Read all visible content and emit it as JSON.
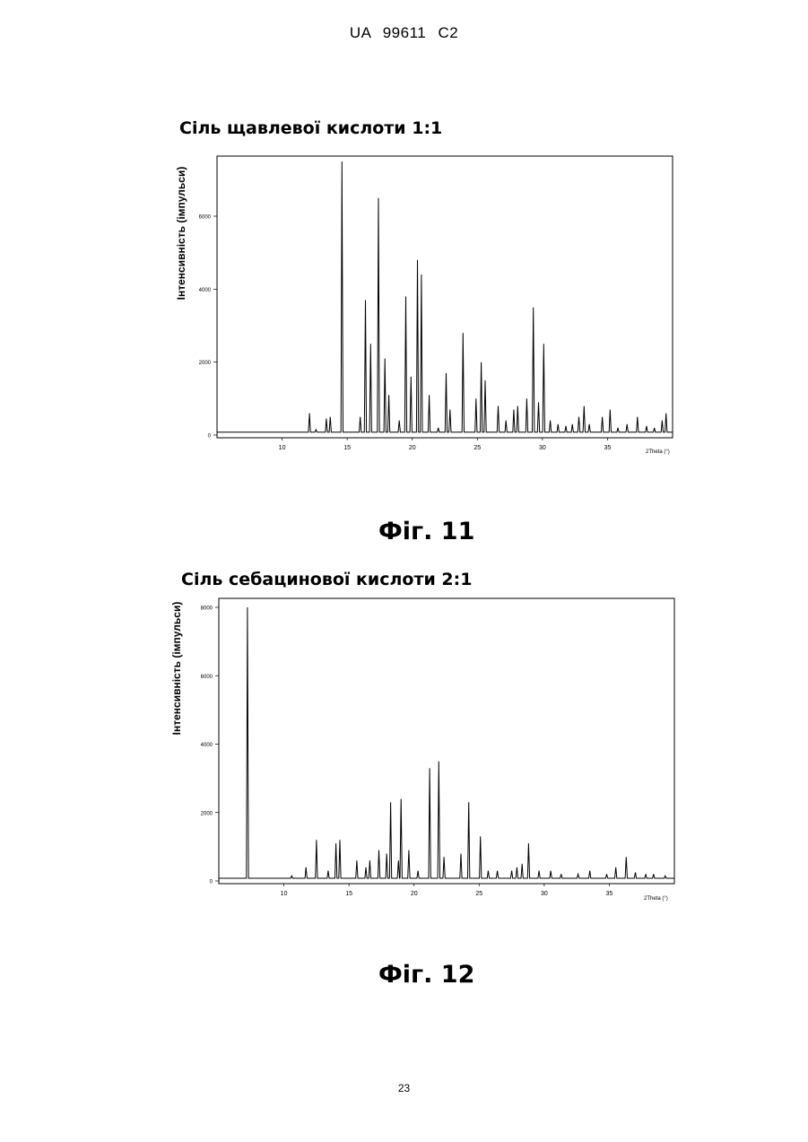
{
  "header": "UA 99611 C2",
  "page_number": "23",
  "figures": [
    {
      "title": "Сіль щавлевої кислоти 1:1",
      "caption": "Фіг. 11"
    },
    {
      "title": "Сіль себацинової кислоти 2:1",
      "caption": "Фіг. 12"
    }
  ],
  "chart_data": [
    {
      "type": "line",
      "ylabel": "Інтенсивність (імпульси)",
      "xlabel": "2Theta (°)",
      "xlim": [
        5,
        40
      ],
      "ylim": [
        0,
        7500
      ],
      "xticks": [
        10,
        15,
        20,
        25,
        30,
        35
      ],
      "yticks": [
        0,
        2000,
        4000,
        6000
      ],
      "baseline": 80,
      "grid": false,
      "peaks": [
        [
          12.1,
          600
        ],
        [
          12.6,
          150
        ],
        [
          13.4,
          450
        ],
        [
          13.7,
          500
        ],
        [
          14.6,
          7500
        ],
        [
          16.0,
          500
        ],
        [
          16.4,
          3700
        ],
        [
          16.8,
          2500
        ],
        [
          17.4,
          6500
        ],
        [
          17.9,
          2100
        ],
        [
          18.2,
          1100
        ],
        [
          19.0,
          400
        ],
        [
          19.5,
          3800
        ],
        [
          19.9,
          1600
        ],
        [
          20.4,
          4800
        ],
        [
          20.7,
          4400
        ],
        [
          21.3,
          1100
        ],
        [
          22.0,
          200
        ],
        [
          22.6,
          1700
        ],
        [
          22.9,
          700
        ],
        [
          23.9,
          2800
        ],
        [
          24.9,
          1000
        ],
        [
          25.3,
          2000
        ],
        [
          25.6,
          1500
        ],
        [
          26.6,
          800
        ],
        [
          27.2,
          400
        ],
        [
          27.8,
          700
        ],
        [
          28.1,
          800
        ],
        [
          28.8,
          1000
        ],
        [
          29.3,
          3500
        ],
        [
          29.7,
          900
        ],
        [
          30.1,
          2500
        ],
        [
          30.6,
          400
        ],
        [
          31.2,
          300
        ],
        [
          31.8,
          250
        ],
        [
          32.3,
          300
        ],
        [
          32.8,
          500
        ],
        [
          33.2,
          800
        ],
        [
          33.6,
          300
        ],
        [
          34.6,
          500
        ],
        [
          35.2,
          700
        ],
        [
          35.8,
          200
        ],
        [
          36.5,
          300
        ],
        [
          37.3,
          500
        ],
        [
          38.0,
          250
        ],
        [
          38.6,
          200
        ],
        [
          39.2,
          400
        ],
        [
          39.5,
          600
        ]
      ]
    },
    {
      "type": "line",
      "ylabel": "Інтенсивність (імпульси)",
      "xlabel": "2Theta (°)",
      "xlim": [
        5,
        40
      ],
      "ylim": [
        0,
        8000
      ],
      "xticks": [
        10,
        15,
        20,
        25,
        30,
        35
      ],
      "yticks": [
        0,
        2000,
        4000,
        6000,
        8000
      ],
      "baseline": 80,
      "grid": false,
      "peaks": [
        [
          7.2,
          8000
        ],
        [
          10.6,
          150
        ],
        [
          11.7,
          400
        ],
        [
          12.5,
          1200
        ],
        [
          13.4,
          300
        ],
        [
          14.0,
          1100
        ],
        [
          14.3,
          1200
        ],
        [
          15.6,
          600
        ],
        [
          16.3,
          400
        ],
        [
          16.6,
          600
        ],
        [
          17.3,
          900
        ],
        [
          17.9,
          800
        ],
        [
          18.2,
          2300
        ],
        [
          18.8,
          600
        ],
        [
          19.0,
          2400
        ],
        [
          19.6,
          900
        ],
        [
          20.3,
          300
        ],
        [
          21.2,
          3300
        ],
        [
          21.9,
          3500
        ],
        [
          22.3,
          700
        ],
        [
          23.6,
          800
        ],
        [
          24.2,
          2300
        ],
        [
          25.1,
          1300
        ],
        [
          25.7,
          300
        ],
        [
          26.4,
          300
        ],
        [
          27.5,
          300
        ],
        [
          27.9,
          400
        ],
        [
          28.3,
          500
        ],
        [
          28.8,
          1100
        ],
        [
          29.6,
          300
        ],
        [
          30.5,
          300
        ],
        [
          31.3,
          200
        ],
        [
          32.6,
          200
        ],
        [
          33.5,
          300
        ],
        [
          34.8,
          200
        ],
        [
          35.5,
          400
        ],
        [
          36.3,
          700
        ],
        [
          37.0,
          250
        ],
        [
          37.8,
          200
        ],
        [
          38.4,
          200
        ],
        [
          39.3,
          150
        ]
      ]
    }
  ]
}
